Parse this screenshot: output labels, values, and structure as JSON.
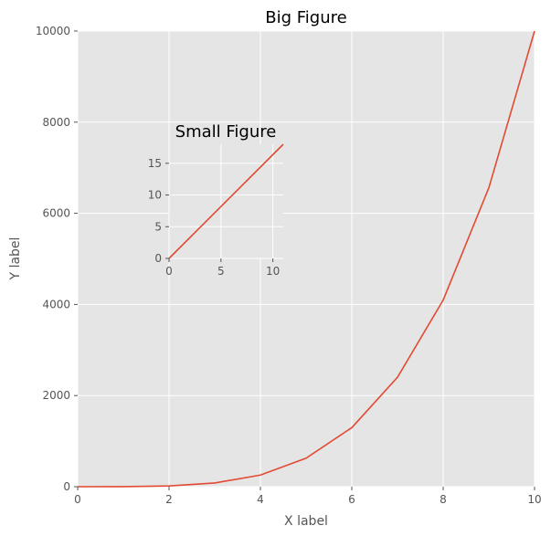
{
  "chart_data": [
    {
      "type": "line",
      "title": "Big Figure",
      "xlabel": "X label",
      "ylabel": "Y label",
      "xlim": [
        0,
        10
      ],
      "ylim": [
        0,
        10000
      ],
      "xticks": [
        0,
        2,
        4,
        6,
        8,
        10
      ],
      "yticks": [
        0,
        2000,
        4000,
        6000,
        8000,
        10000
      ],
      "grid": true,
      "series": [
        {
          "color": "#e24a33",
          "x": [
            0,
            1,
            2,
            3,
            4,
            5,
            6,
            7,
            8,
            9,
            10
          ],
          "y": [
            0,
            1,
            16,
            81,
            256,
            625,
            1296,
            2401,
            4096,
            6561,
            10000
          ]
        }
      ]
    },
    {
      "type": "line",
      "title": "Small Figure",
      "xlabel": "",
      "ylabel": "",
      "xlim": [
        0,
        11
      ],
      "ylim": [
        0,
        18
      ],
      "xticks": [
        0,
        5,
        10
      ],
      "yticks": [
        0,
        5,
        10,
        15
      ],
      "grid": true,
      "series": [
        {
          "color": "#e24a33",
          "x": [
            0,
            11
          ],
          "y": [
            0,
            18
          ]
        }
      ]
    }
  ],
  "style": {
    "plot_background": "#e5e5e5",
    "grid_color": "#ffffff",
    "line_color": "#e24a33",
    "text_color": "#555555"
  }
}
